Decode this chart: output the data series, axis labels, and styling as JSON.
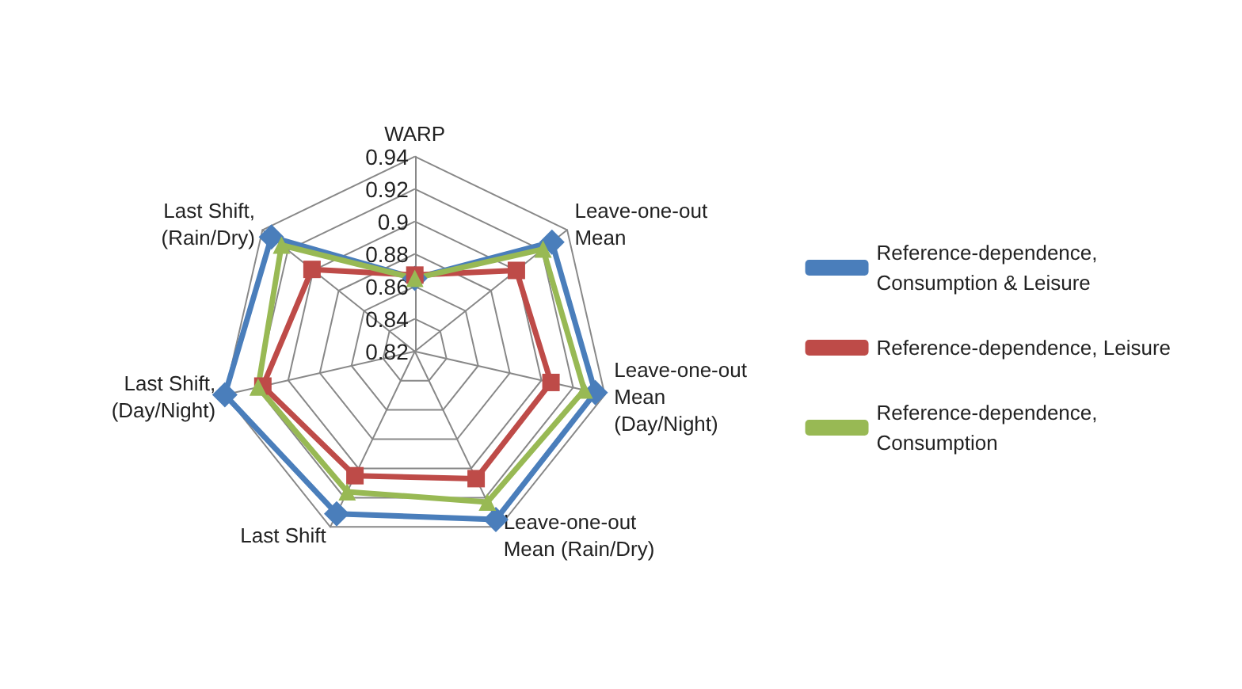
{
  "chart_data": {
    "type": "radar",
    "categories": [
      "WARP",
      "Leave-one-out Mean",
      "Leave-one-out Mean (Day/Night)",
      "Leave-one-out Mean (Rain/Dry)",
      "Last Shift",
      "Last Shift, (Day/Night)",
      "Last Shift, (Rain/Dry)"
    ],
    "series": [
      {
        "name": "Reference-dependence, Consumption & Leisure",
        "color": "#4a7ebb",
        "marker": "diamond",
        "values": [
          0.865,
          0.928,
          0.934,
          0.935,
          0.931,
          0.94,
          0.933
        ]
      },
      {
        "name": "Reference-dependence, Leisure",
        "color": "#be4b48",
        "marker": "square",
        "values": [
          0.867,
          0.9,
          0.906,
          0.907,
          0.905,
          0.916,
          0.901
        ]
      },
      {
        "name": "Reference-dependence, Consumption",
        "color": "#98b954",
        "marker": "triangle",
        "values": [
          0.865,
          0.921,
          0.927,
          0.923,
          0.916,
          0.919,
          0.925
        ]
      }
    ],
    "ylim": [
      0.82,
      0.94
    ],
    "yticks": [
      0.82,
      0.84,
      0.86,
      0.88,
      0.9,
      0.92,
      0.94
    ],
    "grid": true,
    "legend": "right",
    "line_style": "solid"
  }
}
